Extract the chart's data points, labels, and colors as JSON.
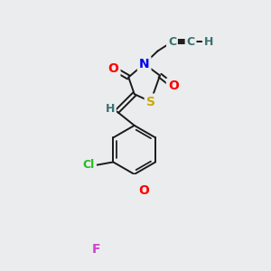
{
  "bg_color": "#eaeced",
  "bond_color": "#1a1a1a",
  "atom_colors": {
    "O": "#ff0000",
    "N": "#0000ee",
    "S": "#ccaa00",
    "Cl": "#22bb22",
    "F": "#cc44cc",
    "C": "#3a7070",
    "H_atom": "#3a7070"
  },
  "lw": 1.4,
  "font_size": 9
}
